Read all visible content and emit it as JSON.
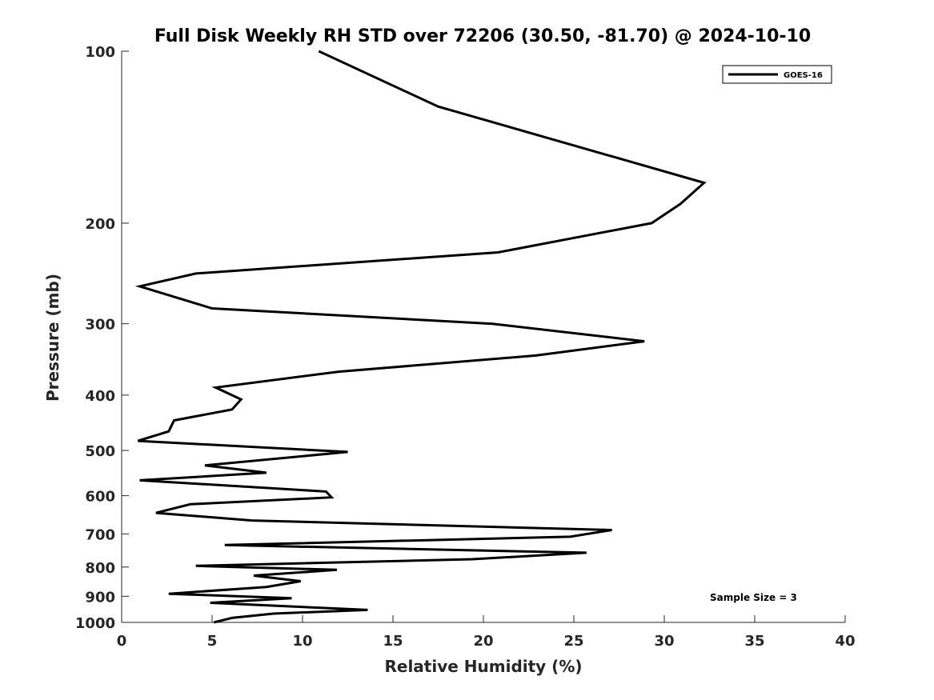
{
  "chart_data": {
    "type": "line",
    "title": "Full Disk Weekly RH STD over 72206 (30.50, -81.70) @ 2024-10-10",
    "xlabel": "Relative Humidity (%)",
    "ylabel": "Pressure (mb)",
    "xlim": [
      0,
      40
    ],
    "ylim": [
      100,
      1000
    ],
    "yscale": "log",
    "y_reversed": true,
    "x_ticks": [
      0,
      5,
      10,
      15,
      20,
      25,
      30,
      35,
      40
    ],
    "y_ticks": [
      100,
      200,
      300,
      400,
      500,
      600,
      700,
      800,
      900,
      1000
    ],
    "grid": false,
    "legend_position": "top-right",
    "annotation": "Sample Size = 3",
    "line_color": "#000000",
    "series": [
      {
        "name": "GOES-16",
        "x": [
          10.9,
          17.5,
          32.2,
          30.9,
          29.3,
          20.8,
          4.1,
          1.0,
          5.0,
          20.5,
          28.9,
          22.9,
          12.0,
          5.2,
          6.6,
          6.1,
          2.9,
          2.6,
          0.9,
          12.5,
          4.6,
          8.0,
          1.0,
          11.3,
          11.6,
          3.8,
          1.9,
          7.2,
          27.1,
          24.8,
          5.7,
          25.7,
          19.4,
          4.1,
          11.9,
          7.3,
          9.9,
          8.0,
          2.6,
          9.4,
          4.9,
          13.6,
          8.4,
          6.1,
          5.1
        ],
        "y": [
          100,
          125,
          170,
          185,
          200,
          225,
          245,
          258,
          282,
          300,
          322,
          341,
          364,
          388,
          407,
          424,
          443,
          463,
          481,
          503,
          531,
          547,
          564,
          590,
          604,
          621,
          643,
          663,
          689,
          708,
          732,
          755,
          775,
          796,
          809,
          828,
          847,
          867,
          891,
          907,
          924,
          951,
          965,
          982,
          1000
        ]
      }
    ]
  }
}
